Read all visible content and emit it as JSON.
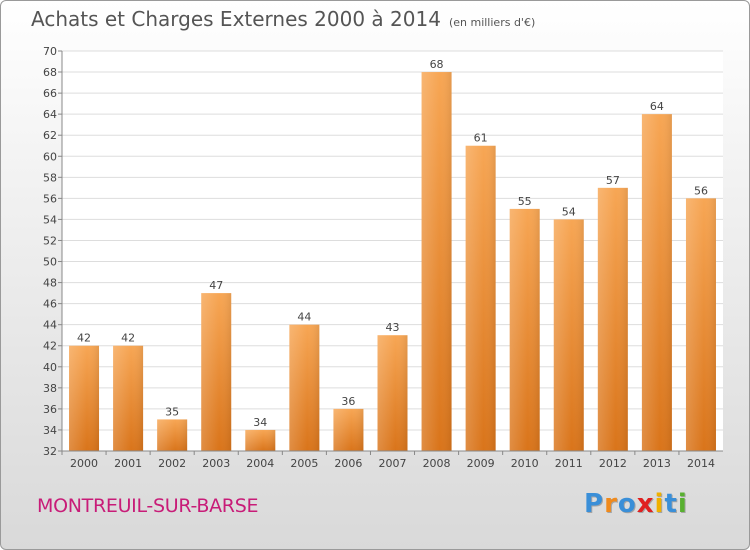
{
  "header": {
    "title": "Achats et Charges Externes 2000 à 2014",
    "subtitle": "(en milliers d'€)"
  },
  "footer": {
    "city": "MONTREUIL-SUR-BARSE",
    "logo": "Proxiti",
    "logo_colors": [
      "#3a8fd8",
      "#f08a1c",
      "#3a8fd8",
      "#e02020",
      "#f0b000",
      "#3a8fd8",
      "#58b030"
    ]
  },
  "chart_data": {
    "type": "bar",
    "title": "Achats et Charges Externes 2000 à 2014",
    "subtitle": "(en milliers d'€)",
    "categories": [
      "2000",
      "2001",
      "2002",
      "2003",
      "2004",
      "2005",
      "2006",
      "2007",
      "2008",
      "2009",
      "2010",
      "2011",
      "2012",
      "2013",
      "2014"
    ],
    "values": [
      42,
      42,
      35,
      47,
      34,
      44,
      36,
      43,
      68,
      61,
      55,
      54,
      57,
      64,
      56
    ],
    "ylim": [
      32,
      70
    ],
    "ytick_step": 2,
    "grid": true,
    "bar_color": "#f0902a"
  }
}
